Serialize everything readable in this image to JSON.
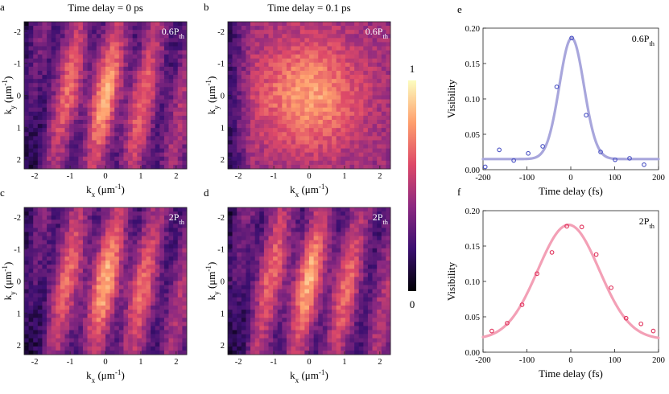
{
  "heatmap_panels": [
    {
      "letter": "a",
      "title": "Time delay = 0 ps",
      "label": "0.6P",
      "label_sub": "th",
      "xlabel": "k",
      "xlabel_sub": "x",
      "xlabel_unit": " (μm",
      "xlabel_unit_sup": "-1",
      "xlabel_close": ")",
      "ylabel": "k",
      "ylabel_sub": "y",
      "ylabel_unit": " (μm",
      "ylabel_unit_sup": "-1",
      "ylabel_close": ")",
      "fringes": 3
    },
    {
      "letter": "b",
      "title": "Time delay = 0.1 ps",
      "label": "0.6P",
      "label_sub": "th",
      "xlabel": "k",
      "xlabel_sub": "x",
      "xlabel_unit": " (μm",
      "xlabel_unit_sup": "-1",
      "xlabel_close": ")",
      "ylabel": "k",
      "ylabel_sub": "y",
      "ylabel_unit": " (μm",
      "ylabel_unit_sup": "-1",
      "ylabel_close": ")",
      "fringes": 0
    },
    {
      "letter": "c",
      "title": "",
      "label": "2P",
      "label_sub": "th",
      "xlabel": "k",
      "xlabel_sub": "x",
      "xlabel_unit": " (μm",
      "xlabel_unit_sup": "-1",
      "xlabel_close": ")",
      "ylabel": "k",
      "ylabel_sub": "y",
      "ylabel_unit": " (μm",
      "ylabel_unit_sup": "-1",
      "ylabel_close": ")",
      "fringes": 3
    },
    {
      "letter": "d",
      "title": "",
      "label": "2P",
      "label_sub": "th",
      "xlabel": "k",
      "xlabel_sub": "x",
      "xlabel_unit": " (μm",
      "xlabel_unit_sup": "-1",
      "xlabel_close": ")",
      "ylabel": "k",
      "ylabel_sub": "y",
      "ylabel_unit": " (μm",
      "ylabel_unit_sup": "-1",
      "ylabel_close": ")",
      "fringes": 2
    }
  ],
  "heatmap_axis": {
    "xticks": [
      "-2",
      "-1",
      "0",
      "1",
      "2"
    ],
    "yticks": [
      "-2",
      "-1",
      "0",
      "1",
      "2"
    ],
    "xrange": [
      -2.3,
      2.3
    ],
    "yrange": [
      -2.3,
      2.3
    ]
  },
  "colorbar": {
    "max_label": "1",
    "min_label": "0",
    "colormap": [
      "#000004",
      "#3b0f70",
      "#8c2981",
      "#de4968",
      "#fe9f6d",
      "#fcfdbf"
    ]
  },
  "chart_data": [
    {
      "type": "scatter",
      "letter": "e",
      "label": "0.6P",
      "label_sub": "th",
      "xlabel": "Time delay (fs)",
      "ylabel": "Visibility",
      "xlim": [
        -200,
        200
      ],
      "ylim": [
        0,
        0.2
      ],
      "xticks": [
        "-200",
        "-100",
        "0",
        "100",
        "200"
      ],
      "yticks": [
        "0.00",
        "0.05",
        "0.10",
        "0.15",
        "0.20"
      ],
      "color": "#4a52c4",
      "fit_color": "#a8a6dc",
      "fit": {
        "model": "gaussian",
        "offset": 0.015,
        "amplitude": 0.171,
        "center": 2,
        "sigma": 28
      },
      "x": [
        -195,
        -163,
        -130,
        -97,
        -64,
        -32,
        2,
        35,
        68,
        101,
        134,
        167
      ],
      "y": [
        0.004,
        0.028,
        0.013,
        0.023,
        0.033,
        0.117,
        0.186,
        0.077,
        0.025,
        0.014,
        0.016,
        0.007
      ]
    },
    {
      "type": "scatter",
      "letter": "f",
      "label": "2P",
      "label_sub": "th",
      "xlabel": "Time delay (fs)",
      "ylabel": "Visibility",
      "xlim": [
        -200,
        200
      ],
      "ylim": [
        0,
        0.2
      ],
      "xticks": [
        "-200",
        "-100",
        "0",
        "100",
        "200"
      ],
      "yticks": [
        "0.00",
        "0.05",
        "0.10",
        "0.15",
        "0.20"
      ],
      "color": "#e0305a",
      "fit_color": "#f3a0b6",
      "fit": {
        "model": "gaussian",
        "offset": 0.018,
        "amplitude": 0.162,
        "center": -5,
        "sigma": 70
      },
      "x": [
        -180,
        -145,
        -111,
        -77,
        -43,
        -9,
        25,
        58,
        92,
        126,
        160,
        188
      ],
      "y": [
        0.03,
        0.041,
        0.067,
        0.111,
        0.141,
        0.178,
        0.177,
        0.138,
        0.091,
        0.048,
        0.04,
        0.03
      ]
    }
  ]
}
